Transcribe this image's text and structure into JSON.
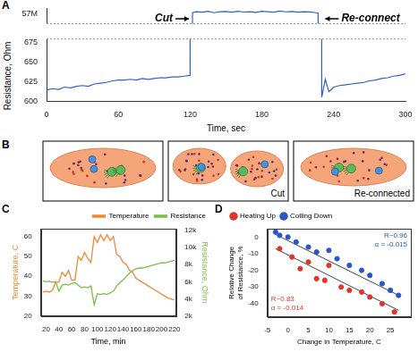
{
  "chart_data": [
    {
      "panel": "A",
      "type": "line",
      "x_label": "Time, sec",
      "y_label": "Resistance, Ohm",
      "x": [
        0,
        5,
        10,
        15,
        20,
        25,
        30,
        35,
        40,
        45,
        50,
        55,
        60,
        65,
        70,
        75,
        80,
        85,
        90,
        95,
        100,
        105,
        110,
        115,
        120,
        122,
        125,
        130,
        135,
        140,
        145,
        150,
        155,
        160,
        165,
        170,
        175,
        180,
        185,
        190,
        195,
        200,
        205,
        210,
        215,
        220,
        225,
        227,
        230,
        233,
        236,
        240,
        245,
        250,
        255,
        260,
        265,
        270,
        275,
        280,
        285,
        290,
        295,
        300
      ],
      "series": [
        {
          "color": "#2f5fd0",
          "values": [
            614,
            616,
            615,
            618,
            617,
            619,
            620,
            619,
            622,
            623,
            624,
            626,
            627,
            627,
            628,
            627,
            629,
            628,
            629,
            630,
            630,
            631,
            631,
            632,
            633,
            57150000,
            57250000,
            57200000,
            57300000,
            57150000,
            57250000,
            57280000,
            57200000,
            57300000,
            57220000,
            57260000,
            57180000,
            57300000,
            57250000,
            57200000,
            57320000,
            57240000,
            57280000,
            57200000,
            57260000,
            57230000,
            57150000,
            57100000,
            605,
            628,
            612,
            618,
            620,
            621,
            622,
            623,
            624,
            626,
            627,
            629,
            630,
            632,
            633,
            635
          ]
        }
      ],
      "xlim": [
        0,
        300
      ],
      "xticks": [
        0,
        60,
        120,
        180,
        240,
        300
      ],
      "y_segments": [
        {
          "ylim": [
            56000000,
            57600000
          ],
          "yticks": [
            {
              "value": 57000000,
              "label": "57M"
            }
          ]
        },
        {
          "ylim": [
            600,
            680
          ],
          "yticks": [
            600,
            625,
            650,
            675
          ]
        }
      ],
      "annotations": [
        "Cut",
        "Re-connect"
      ],
      "grid": false
    },
    {
      "panel": "C",
      "type": "line",
      "x_label": "Time, min",
      "y_label": "Temperature, C",
      "y2_label": "Resistance, Ohm",
      "x": [
        15,
        20,
        25,
        30,
        35,
        40,
        45,
        50,
        55,
        60,
        65,
        70,
        75,
        80,
        85,
        90,
        95,
        100,
        105,
        110,
        115,
        120,
        125,
        130,
        135,
        140,
        145,
        150,
        155,
        160,
        165,
        170,
        175,
        180,
        185,
        190,
        195,
        200,
        205,
        210,
        215,
        220
      ],
      "series": [
        {
          "name": "Temperature",
          "color": "#f0883a",
          "values": [
            32,
            32.5,
            32,
            33,
            37,
            37,
            42,
            40,
            43,
            38,
            38,
            50,
            48,
            52,
            49,
            47,
            60,
            57,
            61,
            58,
            61,
            58,
            60,
            51,
            50,
            47,
            46,
            43,
            42,
            39,
            38,
            37,
            36,
            35,
            34,
            33,
            32,
            31,
            30,
            29,
            28.5,
            28
          ]
        },
        {
          "name": "Resistance",
          "color": "#7cbd4a",
          "axis": "y2",
          "values": [
            6100,
            6000,
            6050,
            5950,
            6000,
            4900,
            5600,
            5700,
            5600,
            5800,
            5900,
            5600,
            5300,
            5400,
            5300,
            5500,
            3300,
            4600,
            4500,
            4600,
            4500,
            4700,
            4900,
            5500,
            5900,
            6200,
            6600,
            7000,
            7300,
            7500,
            7600,
            7600,
            7700,
            7800,
            7900,
            8000,
            8100,
            8200,
            8200,
            8300,
            8400,
            8500
          ]
        }
      ],
      "xlim": [
        12,
        222
      ],
      "xticks": [
        20,
        40,
        60,
        80,
        100,
        120,
        140,
        160,
        180,
        200,
        220
      ],
      "ylim": [
        20,
        64
      ],
      "yticks": [
        20,
        30,
        40,
        50,
        60
      ],
      "y2lim": [
        2000,
        12200
      ],
      "y2ticks": [
        {
          "value": 2000,
          "label": "2k"
        },
        {
          "value": 4000,
          "label": "4k"
        },
        {
          "value": 6000,
          "label": "6k"
        },
        {
          "value": 8000,
          "label": "8k"
        },
        {
          "value": 10000,
          "label": "10k"
        },
        {
          "value": 12000,
          "label": "12k"
        }
      ],
      "legend": "upper right",
      "grid": false
    },
    {
      "panel": "D",
      "type": "scatter",
      "x_label": "Change in Temperature, C",
      "y_label": "Relative Change of Resistance, %",
      "series": [
        {
          "name": "Heating Up",
          "color": "#e0352b",
          "x": [
            -2,
            1,
            3,
            5,
            7,
            9,
            10,
            13,
            15,
            18,
            20,
            23,
            26
          ],
          "values": [
            -7,
            -12,
            -19,
            -15,
            -25,
            -26,
            -17,
            -30,
            -32,
            -33,
            -36,
            -40,
            -45
          ],
          "fit": {
            "x": [
              -3,
              27
            ],
            "values": [
              -7,
              -44
            ]
          },
          "annotation": [
            "R~0.83",
            "α = -0.014"
          ]
        },
        {
          "name": "Colling Down",
          "color": "#2a54c8",
          "x": [
            -3,
            -2,
            0,
            2,
            5,
            7,
            10,
            12,
            15,
            18,
            20,
            23,
            25,
            27
          ],
          "values": [
            3,
            1,
            0,
            -3,
            -6,
            -9,
            -8,
            -13,
            -17,
            -20,
            -23,
            -28,
            -32,
            -35
          ],
          "fit": {
            "x": [
              -3,
              27
            ],
            "values": [
              1.5,
              -35
            ]
          },
          "annotation": [
            "R~0.96",
            "α = -0.015"
          ]
        }
      ],
      "xlim": [
        -5,
        30
      ],
      "xticks": [
        -5,
        0,
        5,
        10,
        15,
        20,
        25
      ],
      "ylim": [
        -48,
        5
      ],
      "yticks": [
        -40,
        -30,
        -20,
        -10,
        0
      ],
      "legend": "upper left",
      "grid": false
    }
  ],
  "diagram": {
    "panel": "B",
    "labels": [
      "Cut",
      "Re-connected"
    ]
  }
}
